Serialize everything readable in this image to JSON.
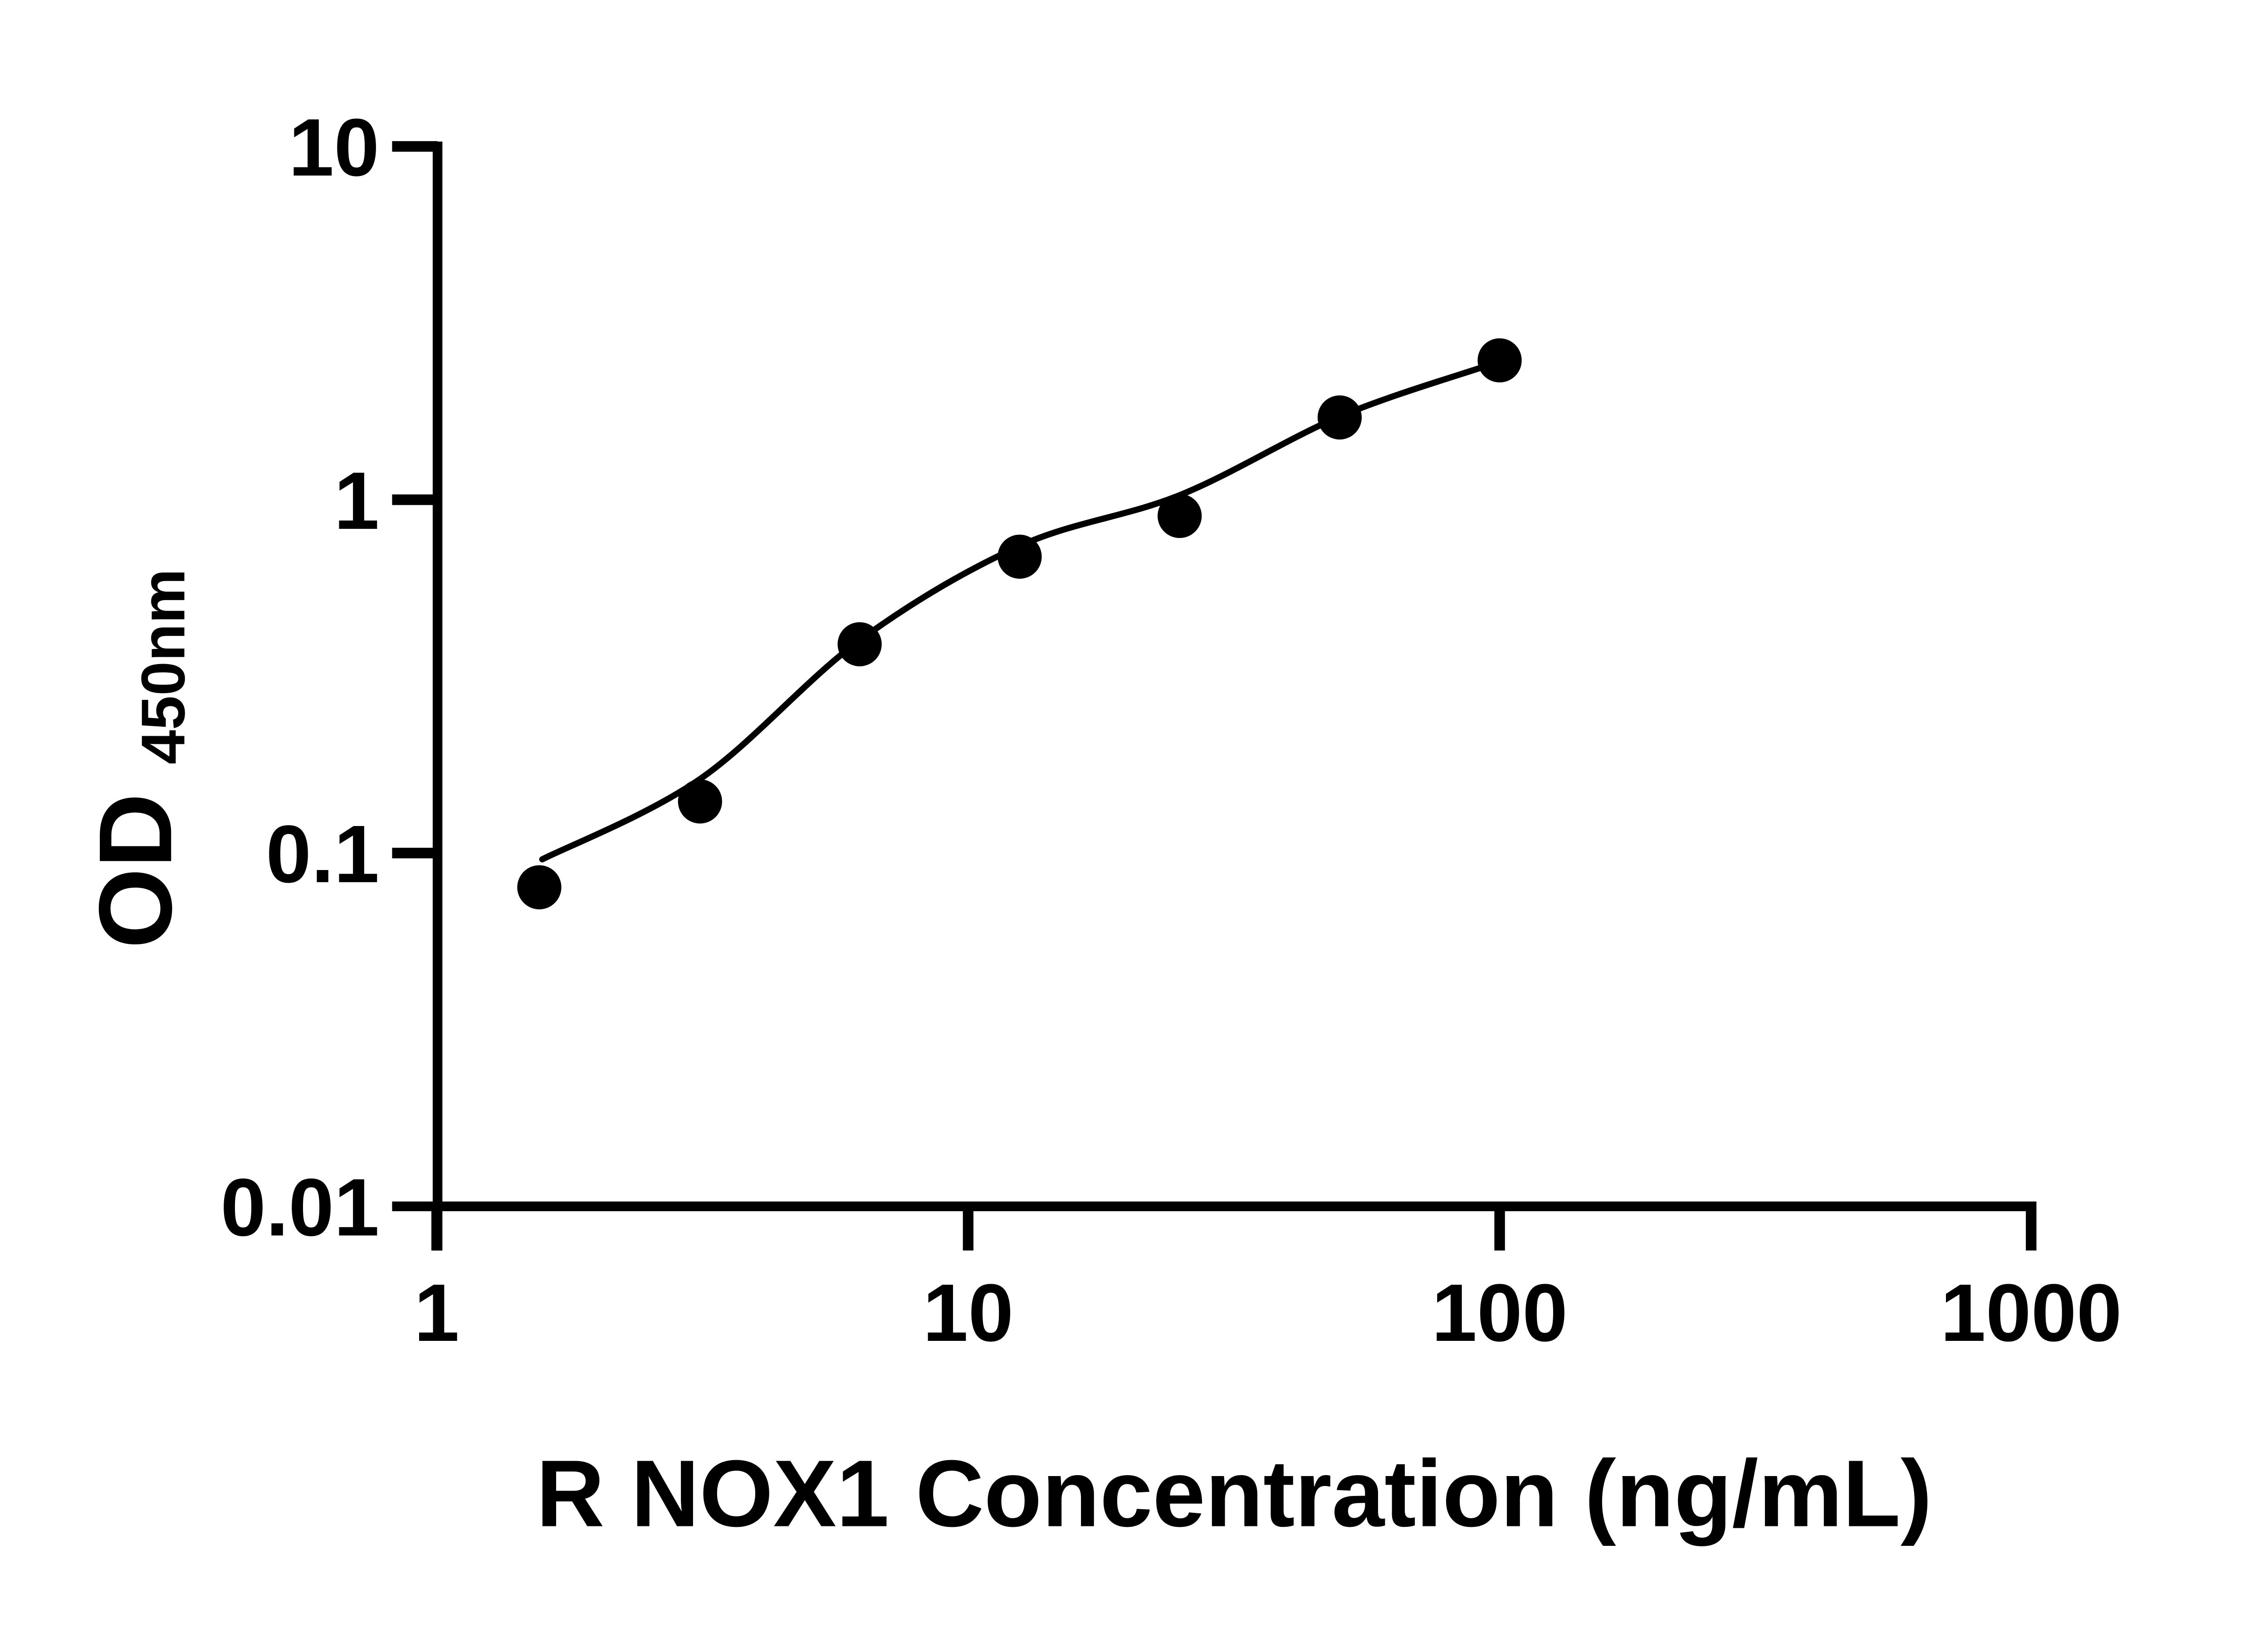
{
  "chart_data": {
    "type": "scatter",
    "title": "",
    "xlabel": "R NOX1 Concentration (ng/mL)",
    "ylabel_main": "OD",
    "ylabel_subscript": "450nm",
    "x_scale": "log",
    "y_scale": "log",
    "xlim": [
      1,
      1000
    ],
    "ylim": [
      0.01,
      10
    ],
    "grid": false,
    "legend": false,
    "axis_color": "#000000",
    "marker_color": "#000000",
    "line_color": "#000000",
    "background_color": "#ffffff",
    "x_ticks": [
      {
        "value": 1,
        "label": "1"
      },
      {
        "value": 10,
        "label": "10"
      },
      {
        "value": 100,
        "label": "100"
      },
      {
        "value": 1000,
        "label": "1000"
      }
    ],
    "y_ticks": [
      {
        "value": 10,
        "label": "10"
      },
      {
        "value": 1,
        "label": "1"
      },
      {
        "value": 0.1,
        "label": "0.1"
      },
      {
        "value": 0.01,
        "label": "0.01"
      }
    ],
    "series": [
      {
        "name": "standard-curve-points",
        "marker": "filled-circle",
        "points": [
          {
            "x": 1.56,
            "y": 0.08
          },
          {
            "x": 3.13,
            "y": 0.14
          },
          {
            "x": 6.25,
            "y": 0.39
          },
          {
            "x": 12.5,
            "y": 0.69
          },
          {
            "x": 25,
            "y": 0.9
          },
          {
            "x": 50,
            "y": 1.71
          },
          {
            "x": 100,
            "y": 2.48
          }
        ]
      }
    ],
    "fit_curve": {
      "name": "fitted-standard-curve",
      "points": [
        {
          "x": 1.58,
          "y": 0.096
        },
        {
          "x": 3.13,
          "y": 0.162
        },
        {
          "x": 6.25,
          "y": 0.4
        },
        {
          "x": 12.5,
          "y": 0.74
        },
        {
          "x": 25,
          "y": 1.03
        },
        {
          "x": 50,
          "y": 1.72
        },
        {
          "x": 95,
          "y": 2.4
        }
      ]
    }
  }
}
